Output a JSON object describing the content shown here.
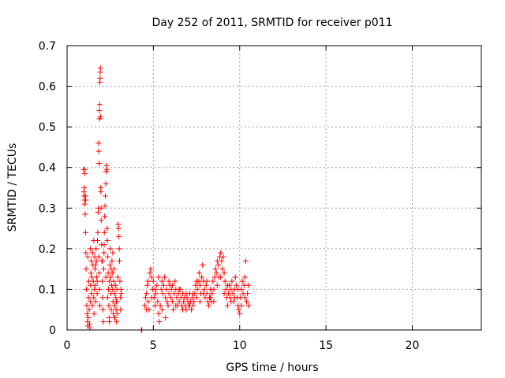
{
  "chart_data": {
    "type": "scatter",
    "title": "Day 252 of 2011, SRMTID for receiver p011",
    "xlabel": "GPS time / hours",
    "ylabel": "SRMTID / TECUs",
    "xlim": [
      0,
      24
    ],
    "ylim": [
      0,
      0.7
    ],
    "xticks": [
      0,
      5,
      10,
      15,
      20
    ],
    "xtick_labels": [
      "0",
      "5",
      "10",
      "15",
      "20"
    ],
    "yticks": [
      0,
      0.1,
      0.2,
      0.3,
      0.4,
      0.5,
      0.6,
      0.7
    ],
    "ytick_labels": [
      "0",
      "0.1",
      "0.2",
      "0.3",
      "0.4",
      "0.5",
      "0.6",
      "0.7"
    ],
    "grid": true,
    "marker": "plus",
    "color": "#ff0000",
    "series": [
      {
        "name": "p011",
        "points": [
          [
            0.95,
            0.395
          ],
          [
            0.97,
            0.34
          ],
          [
            0.99,
            0.33
          ],
          [
            1.01,
            0.32
          ],
          [
            1.03,
            0.31
          ],
          [
            1.05,
            0.285
          ],
          [
            1.07,
            0.24
          ],
          [
            1.09,
            0.19
          ],
          [
            1.0,
            0.35
          ],
          [
            1.02,
            0.385
          ],
          [
            1.04,
            0.395
          ],
          [
            1.06,
            0.33
          ],
          [
            1.08,
            0.32
          ],
          [
            1.1,
            0.15
          ],
          [
            1.12,
            0.1
          ],
          [
            1.14,
            0.06
          ],
          [
            1.16,
            0.04
          ],
          [
            1.18,
            0.02
          ],
          [
            1.2,
            0.01
          ],
          [
            1.22,
            0.03
          ],
          [
            1.24,
            0.08
          ],
          [
            1.26,
            0.12
          ],
          [
            1.28,
            0.05
          ],
          [
            1.3,
            0.015
          ],
          [
            1.32,
            0.005
          ],
          [
            1.34,
            0.07
          ],
          [
            1.36,
            0.11
          ],
          [
            1.38,
            0.14
          ],
          [
            1.4,
            0.17
          ],
          [
            1.42,
            0.09
          ],
          [
            1.44,
            0.13
          ],
          [
            1.46,
            0.06
          ],
          [
            1.48,
            0.19
          ],
          [
            1.5,
            0.16
          ],
          [
            1.52,
            0.12
          ],
          [
            1.54,
            0.08
          ],
          [
            1.56,
            0.04
          ],
          [
            1.58,
            0.1
          ],
          [
            1.6,
            0.18
          ],
          [
            1.62,
            0.15
          ],
          [
            1.64,
            0.11
          ],
          [
            1.66,
            0.07
          ],
          [
            1.68,
            0.2
          ],
          [
            1.7,
            0.17
          ],
          [
            1.72,
            0.13
          ],
          [
            1.74,
            0.09
          ],
          [
            1.76,
            0.22
          ],
          [
            1.78,
            0.24
          ],
          [
            1.8,
            0.29
          ],
          [
            1.82,
            0.3
          ],
          [
            1.84,
            0.18
          ],
          [
            1.86,
            0.14
          ],
          [
            1.88,
            0.1
          ],
          [
            1.9,
            0.06
          ],
          [
            1.82,
            0.46
          ],
          [
            1.84,
            0.44
          ],
          [
            1.86,
            0.41
          ],
          [
            1.87,
            0.54
          ],
          [
            1.88,
            0.52
          ],
          [
            1.89,
            0.555
          ],
          [
            1.9,
            0.61
          ],
          [
            1.91,
            0.62
          ],
          [
            1.92,
            0.635
          ],
          [
            1.93,
            0.645
          ],
          [
            1.94,
            0.525
          ],
          [
            1.95,
            0.35
          ],
          [
            1.96,
            0.34
          ],
          [
            1.97,
            0.3
          ],
          [
            1.98,
            0.27
          ],
          [
            2.0,
            0.21
          ],
          [
            2.02,
            0.17
          ],
          [
            2.04,
            0.12
          ],
          [
            2.06,
            0.08
          ],
          [
            2.08,
            0.05
          ],
          [
            2.1,
            0.02
          ],
          [
            2.12,
            0.15
          ],
          [
            2.14,
            0.19
          ],
          [
            2.16,
            0.24
          ],
          [
            2.18,
            0.28
          ],
          [
            2.2,
            0.305
          ],
          [
            2.22,
            0.33
          ],
          [
            2.24,
            0.36
          ],
          [
            2.26,
            0.39
          ],
          [
            2.28,
            0.405
          ],
          [
            2.3,
            0.395
          ],
          [
            2.32,
            0.25
          ],
          [
            2.34,
            0.22
          ],
          [
            2.36,
            0.18
          ],
          [
            2.38,
            0.14
          ],
          [
            2.4,
            0.1
          ],
          [
            2.42,
            0.06
          ],
          [
            2.44,
            0.03
          ],
          [
            2.46,
            0.12
          ],
          [
            2.48,
            0.16
          ],
          [
            2.5,
            0.2
          ],
          [
            2.52,
            0.13
          ],
          [
            2.54,
            0.09
          ],
          [
            2.56,
            0.05
          ],
          [
            2.58,
            0.11
          ],
          [
            2.6,
            0.17
          ],
          [
            2.62,
            0.14
          ],
          [
            2.64,
            0.1
          ],
          [
            2.66,
            0.07
          ],
          [
            2.68,
            0.04
          ],
          [
            2.7,
            0.12
          ],
          [
            2.72,
            0.15
          ],
          [
            2.74,
            0.09
          ],
          [
            2.76,
            0.06
          ],
          [
            2.78,
            0.03
          ],
          [
            2.8,
            0.11
          ],
          [
            2.82,
            0.08
          ],
          [
            2.84,
            0.05
          ],
          [
            2.86,
            0.02
          ],
          [
            2.88,
            0.1
          ],
          [
            2.9,
            0.07
          ],
          [
            2.92,
            0.04
          ],
          [
            2.94,
            0.13
          ],
          [
            2.96,
            0.26
          ],
          [
            2.98,
            0.25
          ],
          [
            3.0,
            0.23
          ],
          [
            3.02,
            0.2
          ],
          [
            3.04,
            0.17
          ],
          [
            3.06,
            0.12
          ],
          [
            3.08,
            0.08
          ],
          [
            3.1,
            0.05
          ],
          [
            3.12,
            0.1
          ],
          [
            3.14,
            0.09
          ],
          [
            1.2,
            0.18
          ],
          [
            1.35,
            0.2
          ],
          [
            1.55,
            0.22
          ],
          [
            1.65,
            0.16
          ],
          [
            1.75,
            0.12
          ],
          [
            2.05,
            0.17
          ],
          [
            2.15,
            0.21
          ],
          [
            2.25,
            0.13
          ],
          [
            2.35,
            0.08
          ],
          [
            2.45,
            0.02
          ],
          [
            2.55,
            0.15
          ],
          [
            2.65,
            0.19
          ],
          [
            2.75,
            0.03
          ],
          [
            2.85,
            0.07
          ],
          [
            4.3,
            0.0
          ],
          [
            4.33,
            0.0
          ],
          [
            4.5,
            0.06
          ],
          [
            4.55,
            0.08
          ],
          [
            4.6,
            0.09
          ],
          [
            4.65,
            0.11
          ],
          [
            4.7,
            0.07
          ],
          [
            4.75,
            0.05
          ],
          [
            4.8,
            0.14
          ],
          [
            4.85,
            0.15
          ],
          [
            4.9,
            0.13
          ],
          [
            4.95,
            0.1
          ],
          [
            5.0,
            0.12
          ],
          [
            5.05,
            0.08
          ],
          [
            5.1,
            0.06
          ],
          [
            5.15,
            0.09
          ],
          [
            5.2,
            0.11
          ],
          [
            5.25,
            0.07
          ],
          [
            5.3,
            0.04
          ],
          [
            5.35,
            0.02
          ],
          [
            5.4,
            0.06
          ],
          [
            5.45,
            0.1
          ],
          [
            5.5,
            0.12
          ],
          [
            5.55,
            0.09
          ],
          [
            5.6,
            0.11
          ],
          [
            5.65,
            0.13
          ],
          [
            5.7,
            0.08
          ],
          [
            5.75,
            0.1
          ],
          [
            5.8,
            0.07
          ],
          [
            5.85,
            0.06
          ],
          [
            5.9,
            0.09
          ],
          [
            5.95,
            0.11
          ],
          [
            6.0,
            0.08
          ],
          [
            6.05,
            0.1
          ],
          [
            6.1,
            0.07
          ],
          [
            6.15,
            0.05
          ],
          [
            6.2,
            0.09
          ],
          [
            6.25,
            0.12
          ],
          [
            6.3,
            0.1
          ],
          [
            6.35,
            0.08
          ],
          [
            6.4,
            0.06
          ],
          [
            6.45,
            0.09
          ],
          [
            6.5,
            0.07
          ],
          [
            6.55,
            0.1
          ],
          [
            6.6,
            0.08
          ],
          [
            6.65,
            0.06
          ],
          [
            6.7,
            0.09
          ],
          [
            6.75,
            0.07
          ],
          [
            6.8,
            0.08
          ],
          [
            6.85,
            0.06
          ],
          [
            6.9,
            0.05
          ],
          [
            6.95,
            0.08
          ],
          [
            7.0,
            0.07
          ],
          [
            7.05,
            0.06
          ],
          [
            7.1,
            0.09
          ],
          [
            7.15,
            0.07
          ],
          [
            7.2,
            0.05
          ],
          [
            7.25,
            0.08
          ],
          [
            7.3,
            0.06
          ],
          [
            7.35,
            0.07
          ],
          [
            7.4,
            0.09
          ],
          [
            7.45,
            0.11
          ],
          [
            7.5,
            0.08
          ],
          [
            7.55,
            0.1
          ],
          [
            7.6,
            0.12
          ],
          [
            7.65,
            0.14
          ],
          [
            7.7,
            0.11
          ],
          [
            7.75,
            0.09
          ],
          [
            7.8,
            0.13
          ],
          [
            7.85,
            0.16
          ],
          [
            7.9,
            0.12
          ],
          [
            7.95,
            0.1
          ],
          [
            8.0,
            0.08
          ],
          [
            8.05,
            0.11
          ],
          [
            8.1,
            0.09
          ],
          [
            8.15,
            0.07
          ],
          [
            8.2,
            0.06
          ],
          [
            8.25,
            0.08
          ],
          [
            8.3,
            0.1
          ],
          [
            8.35,
            0.07
          ],
          [
            8.4,
            0.09
          ],
          [
            8.45,
            0.12
          ],
          [
            8.5,
            0.1
          ],
          [
            8.55,
            0.13
          ],
          [
            8.6,
            0.15
          ],
          [
            8.65,
            0.14
          ],
          [
            8.7,
            0.17
          ],
          [
            8.75,
            0.16
          ],
          [
            8.8,
            0.13
          ],
          [
            8.85,
            0.18
          ],
          [
            8.9,
            0.19
          ],
          [
            8.95,
            0.17
          ],
          [
            9.0,
            0.15
          ],
          [
            9.05,
            0.18
          ],
          [
            9.1,
            0.14
          ],
          [
            9.15,
            0.12
          ],
          [
            9.2,
            0.1
          ],
          [
            9.25,
            0.08
          ],
          [
            9.3,
            0.06
          ],
          [
            9.35,
            0.09
          ],
          [
            9.4,
            0.11
          ],
          [
            9.45,
            0.08
          ],
          [
            9.5,
            0.1
          ],
          [
            9.55,
            0.12
          ],
          [
            9.6,
            0.09
          ],
          [
            9.65,
            0.07
          ],
          [
            9.7,
            0.1
          ],
          [
            9.75,
            0.13
          ],
          [
            9.8,
            0.11
          ],
          [
            9.85,
            0.08
          ],
          [
            9.9,
            0.06
          ],
          [
            9.95,
            0.05
          ],
          [
            10.0,
            0.04
          ],
          [
            10.05,
            0.08
          ],
          [
            10.1,
            0.1
          ],
          [
            10.15,
            0.12
          ],
          [
            10.2,
            0.09
          ],
          [
            10.25,
            0.11
          ],
          [
            10.3,
            0.13
          ],
          [
            10.35,
            0.17
          ],
          [
            10.4,
            0.07
          ],
          [
            10.45,
            0.09
          ],
          [
            4.6,
            0.05
          ],
          [
            4.7,
            0.12
          ],
          [
            4.9,
            0.08
          ],
          [
            5.1,
            0.1
          ],
          [
            5.3,
            0.13
          ],
          [
            5.5,
            0.05
          ],
          [
            5.7,
            0.03
          ],
          [
            5.9,
            0.12
          ],
          [
            6.1,
            0.11
          ],
          [
            6.3,
            0.06
          ],
          [
            6.5,
            0.1
          ],
          [
            6.7,
            0.05
          ],
          [
            6.9,
            0.09
          ],
          [
            7.1,
            0.06
          ],
          [
            7.3,
            0.09
          ],
          [
            7.5,
            0.12
          ],
          [
            7.7,
            0.07
          ],
          [
            7.9,
            0.09
          ],
          [
            8.1,
            0.12
          ],
          [
            8.3,
            0.08
          ],
          [
            8.5,
            0.07
          ],
          [
            8.7,
            0.11
          ],
          [
            8.9,
            0.13
          ],
          [
            9.1,
            0.09
          ],
          [
            9.3,
            0.11
          ],
          [
            9.5,
            0.07
          ],
          [
            9.7,
            0.08
          ],
          [
            9.9,
            0.1
          ],
          [
            10.1,
            0.06
          ],
          [
            10.3,
            0.08
          ],
          [
            10.5,
            0.11
          ],
          [
            10.5,
            0.06
          ]
        ]
      }
    ]
  }
}
